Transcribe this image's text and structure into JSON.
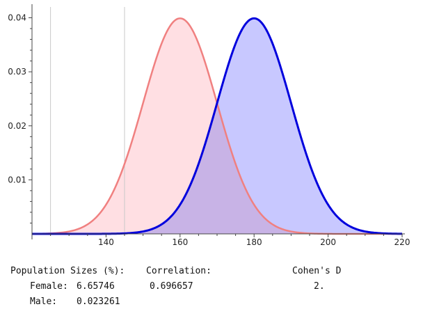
{
  "chart_data": {
    "type": "area",
    "x": [
      120,
      125,
      130,
      135,
      140,
      145,
      150,
      155,
      160,
      165,
      170,
      175,
      180,
      185,
      190,
      195,
      200,
      205,
      210,
      215,
      220
    ],
    "series": [
      {
        "values": [
          1e-05,
          0.00016,
          0.00044,
          0.0014,
          0.0054,
          0.0129,
          0.0242,
          0.0352,
          0.0399,
          0.0352,
          0.0242,
          0.0129,
          0.0054,
          0.0014,
          0.00044,
          0.00016,
          1e-05,
          0.0,
          0.0,
          0.0,
          0.0
        ],
        "mean": 160,
        "sd": 10,
        "line_color": "#f08080",
        "fill_color": "#ffdfe3"
      },
      {
        "values": [
          0.0,
          0.0,
          0.0,
          0.0,
          1e-05,
          0.00016,
          0.00044,
          0.0014,
          0.0054,
          0.0129,
          0.0242,
          0.0352,
          0.0399,
          0.0352,
          0.0242,
          0.0129,
          0.0054,
          0.0014,
          0.00044,
          0.00016,
          1e-05
        ],
        "mean": 180,
        "sd": 10,
        "line_color": "#0000dd",
        "fill_color": "#c8c8ff"
      }
    ],
    "overlap_fill_color": "#c8b3e6",
    "x_ticks": [
      140,
      160,
      180,
      200,
      220
    ],
    "x_tick_labels": [
      "140",
      "160",
      "180",
      "200",
      "220"
    ],
    "y_ticks": [
      0.01,
      0.02,
      0.03,
      0.04
    ],
    "y_tick_labels": [
      "0.01",
      "0.02",
      "0.03",
      "0.04"
    ],
    "xlim": [
      120,
      220
    ],
    "ylim": [
      0,
      0.042
    ],
    "vertical_lines": [
      125,
      145
    ],
    "grid": false,
    "legend": "none"
  },
  "stats": {
    "population_header": "Population Sizes (%):",
    "correlation_header": "Correlation:",
    "cohens_header": "Cohen's D",
    "female_label": "Female:",
    "female_value": "6.65746",
    "male_label": "Male:",
    "male_value": "0.023261",
    "correlation_value": "0.696657",
    "cohens_value": "2."
  }
}
